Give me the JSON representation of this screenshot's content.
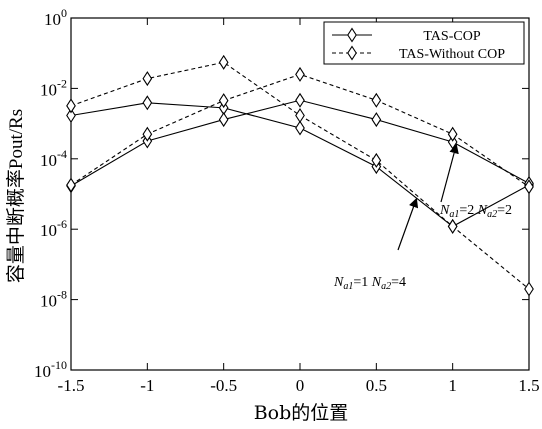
{
  "chart_data": {
    "type": "line",
    "xlabel": "Bob的位置",
    "ylabel": "容量中断概率",
    "ylabel_math": "Pout/Rs",
    "xlim": [
      -1.5,
      1.5
    ],
    "ylim_exponent": [
      -10,
      0
    ],
    "yscale": "log",
    "grid": false,
    "legend_position": "top-right",
    "x": [
      -1.5,
      -1,
      -0.5,
      0,
      0.5,
      1,
      1.5
    ],
    "x_ticks": [
      {
        "value": -1.5,
        "label": "-1.5"
      },
      {
        "value": -1,
        "label": "-1"
      },
      {
        "value": -0.5,
        "label": "-0.5"
      },
      {
        "value": 0,
        "label": "0"
      },
      {
        "value": 0.5,
        "label": "0.5"
      },
      {
        "value": 1,
        "label": "1"
      },
      {
        "value": 1.5,
        "label": "1.5"
      }
    ],
    "y_ticks": [
      {
        "exp": 0,
        "label_base": "10",
        "label_exp": "0"
      },
      {
        "exp": -2,
        "label_base": "10",
        "label_exp": "-2"
      },
      {
        "exp": -4,
        "label_base": "10",
        "label_exp": "-4"
      },
      {
        "exp": -6,
        "label_base": "10",
        "label_exp": "-6"
      },
      {
        "exp": -8,
        "label_base": "10",
        "label_exp": "-8"
      },
      {
        "exp": -10,
        "label_base": "10",
        "label_exp": "-10"
      }
    ],
    "series": [
      {
        "name": "TAS-COP",
        "style": "solid",
        "group": "Na1=2 Na2=2",
        "values": [
          0.0017,
          0.0039,
          0.0028,
          0.00075,
          6e-05,
          1.2e-06,
          1.8e-05
        ]
      },
      {
        "name": "TAS-COP",
        "style": "solid",
        "group": "Na1=1 Na2=4",
        "values": [
          1.7e-05,
          0.00032,
          0.0013,
          0.0046,
          0.0013,
          0.0003,
          2e-05
        ]
      },
      {
        "name": "TAS-Without COP",
        "style": "dashed",
        "group": "Na1=2 Na2=2",
        "values": [
          0.0032,
          0.019,
          0.055,
          0.0017,
          9e-05,
          1.2e-06,
          2e-08
        ]
      },
      {
        "name": "TAS-Without COP",
        "style": "dashed",
        "group": "Na1=1 Na2=4",
        "values": [
          1.8e-05,
          0.0005,
          0.0045,
          0.025,
          0.0046,
          0.0005,
          1.6e-05
        ]
      }
    ],
    "legend": [
      {
        "label": "TAS-COP",
        "style": "solid"
      },
      {
        "label": "TAS-Without COP",
        "style": "dashed"
      }
    ],
    "annotations": [
      {
        "id": "a1",
        "text_parts": [
          "N",
          "a1",
          "=2  ",
          "N",
          "a2",
          "=2"
        ]
      },
      {
        "id": "a2",
        "text_parts": [
          "N",
          "a1",
          "=1  ",
          "N",
          "a2",
          "=4"
        ]
      }
    ]
  }
}
